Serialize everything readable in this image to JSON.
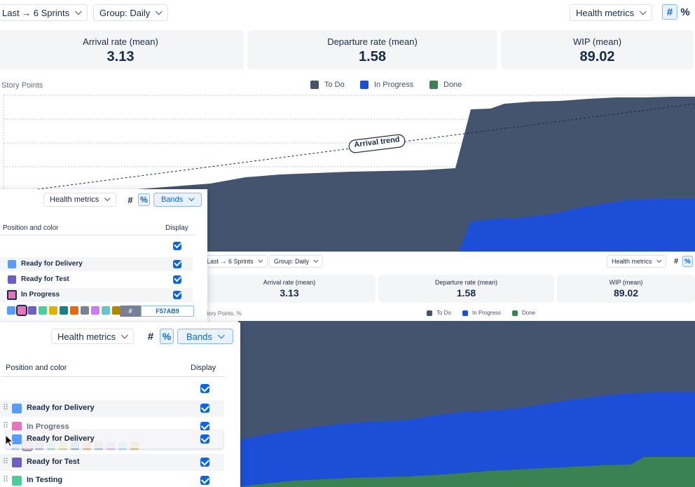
{
  "toolbar": {
    "range_label": "Last → 6 Sprints",
    "group_label": "Group: Daily",
    "metrics_label": "Health metrics",
    "count_toggle": "#",
    "percent_toggle": "%"
  },
  "cards": [
    {
      "label": "Arrival rate (mean)",
      "value": "3.13"
    },
    {
      "label": "Departure rate (mean)",
      "value": "1.58"
    },
    {
      "label": "WIP (mean)",
      "value": "89.02"
    }
  ],
  "chart": {
    "ylabel": "Story Points",
    "ylabel_percent": "Story Points, %",
    "legend": [
      {
        "label": "To Do",
        "color": "#44546f"
      },
      {
        "label": "In Progress",
        "color": "#1d4ed8"
      },
      {
        "label": "Done",
        "color": "#3b8253"
      }
    ],
    "trend_label": "Arrival trend"
  },
  "panel": {
    "metrics_label": "Health metrics",
    "bands_label": "Bands",
    "col_position": "Position and color",
    "col_display": "Display",
    "rows": [
      {
        "label": "Ready for Delivery",
        "color": "#579dff"
      },
      {
        "label": "Ready for Test",
        "color": "#6e5dc6"
      },
      {
        "label": "In Progress",
        "color": "#e774bb"
      }
    ],
    "palette": [
      "#579dff",
      "#e774bb",
      "#6e5dc6",
      "#4bce97",
      "#e2b203",
      "#1d7f8c",
      "#e56910",
      "#758195",
      "#c97cf4",
      "#60c6d2",
      "#b38600"
    ],
    "hex_prefix": "#",
    "hex_value": "F57AB9"
  },
  "panel2": {
    "rows": [
      {
        "label": "Ready for Delivery",
        "color": "#579dff"
      },
      {
        "label": "In Progress",
        "color": "#e774bb"
      },
      {
        "label": "Ready for Delivery",
        "color": "#579dff"
      },
      {
        "label": "Ready for Test",
        "color": "#6e5dc6"
      },
      {
        "label": "In Testing",
        "color": "#4bce97"
      }
    ]
  }
}
